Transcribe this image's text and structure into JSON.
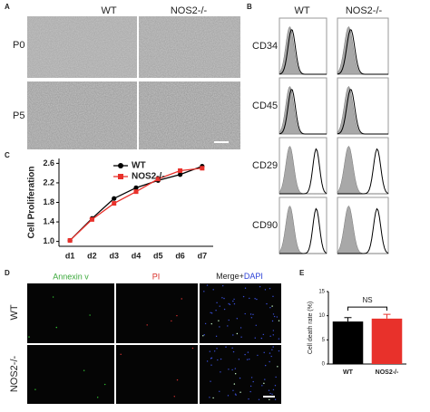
{
  "panel_a": {
    "label": "A",
    "columns": [
      "WT",
      "NOS2-/-"
    ],
    "rows": [
      "P0",
      "P5"
    ]
  },
  "panel_b": {
    "label": "B",
    "columns": [
      "WT",
      "NOS2-/-"
    ],
    "rows": [
      "CD34",
      "CD45",
      "CD29",
      "CD90"
    ]
  },
  "panel_c": {
    "label": "C"
  },
  "panel_d": {
    "label": "D",
    "columns": [
      "Annexin v",
      "PI"
    ],
    "merge_label": [
      "Merge+",
      "DAPI"
    ],
    "rows": [
      "WT",
      "NOS2-/-"
    ]
  },
  "panel_e": {
    "label": "E"
  },
  "chart_data": [
    {
      "type": "line",
      "y_label": "Cell Proliferation",
      "categories": [
        "d1",
        "d2",
        "d3",
        "d4",
        "d5",
        "d6",
        "d7"
      ],
      "series": [
        {
          "name": "WT",
          "color": "#000000",
          "values": [
            1.02,
            1.47,
            1.88,
            2.1,
            2.25,
            2.37,
            2.54
          ]
        },
        {
          "name": "NOS2-/-",
          "color": "#e8312b",
          "values": [
            1.02,
            1.45,
            1.78,
            2.02,
            2.28,
            2.45,
            2.5
          ]
        }
      ],
      "ylim": [
        0.9,
        2.7
      ],
      "yticks": [
        {
          "value": 1,
          "label": "1.0"
        },
        1.4,
        1.8,
        2.2,
        2.6
      ]
    },
    {
      "type": "bar",
      "y_label": "Cell death rate (%)",
      "annotation": "NS",
      "categories": [
        "WT",
        "NOS2-/-"
      ],
      "values": [
        8.8,
        9.4
      ],
      "errors": [
        0.8,
        0.9
      ],
      "colors": [
        "#000000",
        "#e8312b"
      ],
      "ylim": [
        0,
        15
      ],
      "yticks": [
        0,
        5,
        10,
        15
      ]
    }
  ]
}
